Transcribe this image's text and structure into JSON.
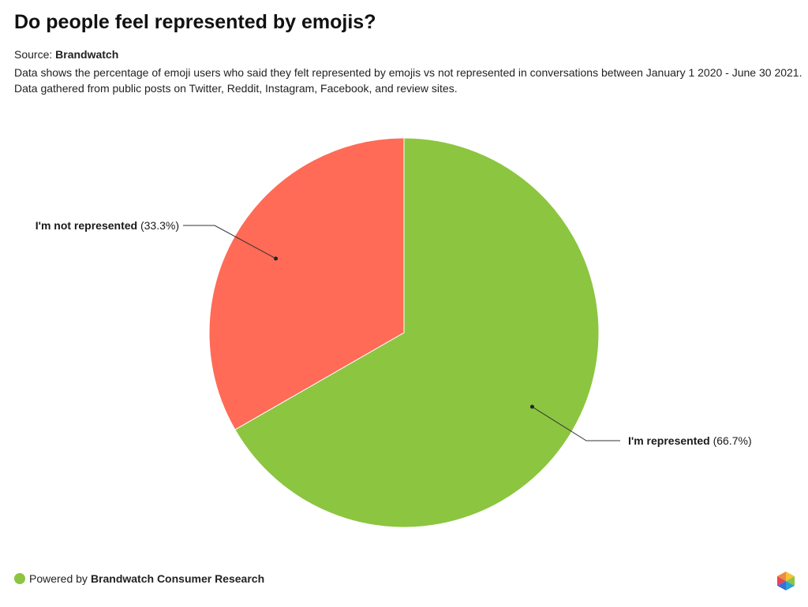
{
  "header": {
    "title": "Do people feel represented by emojis?",
    "source_label": "Source:",
    "source_name": "Brandwatch",
    "description_line1": "Data shows the percentage of emoji users who said they felt represented by emojis vs not represented in conversations between January 1 2020 - June 30 2021.",
    "description_line2": "Data gathered from public posts on Twitter, Reddit, Instagram, Facebook, and review sites."
  },
  "footer": {
    "powered_by": "Powered by",
    "brand": "Brandwatch Consumer Research",
    "dot_color": "#8cc540"
  },
  "logo_icon": "brandwatch-hexagon-icon",
  "chart_data": {
    "type": "pie",
    "slices": [
      {
        "label": "I'm represented",
        "value": 66.7,
        "value_label": "(66.7%)",
        "color": "#8cc540"
      },
      {
        "label": "I'm not represented",
        "value": 33.3,
        "value_label": "(33.3%)",
        "color": "#ff6b56"
      }
    ]
  }
}
